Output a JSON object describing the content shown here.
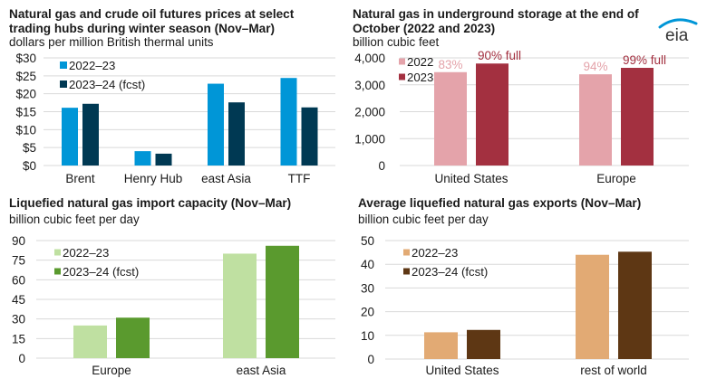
{
  "logo": {
    "text": "eia",
    "color": "#0096d7"
  },
  "chart_data": [
    {
      "type": "bar",
      "title": "Natural gas and crude oil futures prices at select trading hubs during winter season (Nov–Mar)",
      "title_lines": [
        "Natural gas and crude oil futures prices at select",
        "trading hubs during winter season (Nov–Mar)"
      ],
      "subtitle": "dollars per million British thermal units",
      "categories": [
        "Brent",
        "Henry Hub",
        "east Asia",
        "TTF"
      ],
      "series": [
        {
          "name": "2022–23",
          "color": "#0096d7",
          "values": [
            16.1,
            4.0,
            22.8,
            24.4
          ]
        },
        {
          "name": "2023–24 (fcst)",
          "color": "#003953",
          "values": [
            17.2,
            3.3,
            17.6,
            16.2
          ]
        }
      ],
      "yticks": [
        0,
        5,
        10,
        15,
        20,
        25,
        30
      ],
      "ytick_labels": [
        "$0",
        "$5",
        "$10",
        "$15",
        "$20",
        "$25",
        "$30"
      ],
      "ylim": [
        0,
        30
      ],
      "grid": true,
      "legend": "top-left"
    },
    {
      "type": "bar",
      "title": "Natural gas in underground storage at the end of October (2022 and 2023)",
      "title_lines": [
        "Natural gas in underground storage at the end of",
        "October (2022 and 2023)"
      ],
      "subtitle": "billion cubic feet",
      "categories": [
        "United States",
        "Europe"
      ],
      "series": [
        {
          "name": "2022",
          "color": "#e4a3aa",
          "values": [
            3470,
            3390
          ],
          "data_labels": [
            "83%",
            "94%"
          ]
        },
        {
          "name": "2023",
          "color": "#a33040",
          "values": [
            3790,
            3630
          ],
          "data_labels": [
            "90% full",
            "99% full"
          ]
        }
      ],
      "yticks": [
        0,
        1000,
        2000,
        3000,
        4000
      ],
      "ytick_labels": [
        "0",
        "1,000",
        "2,000",
        "3,000",
        "4,000"
      ],
      "ylim": [
        0,
        4000
      ],
      "grid": true,
      "legend": "top-left"
    },
    {
      "type": "bar",
      "title": "Liquefied natural gas import capacity (Nov–Mar)",
      "title_lines": [
        "Liquefied natural gas import capacity (Nov–Mar)"
      ],
      "subtitle": "billion cubic feet per day",
      "categories": [
        "Europe",
        "east Asia"
      ],
      "series": [
        {
          "name": "2022–23",
          "color": "#bfe0a1",
          "values": [
            25,
            80
          ]
        },
        {
          "name": "2023–24 (fcst)",
          "color": "#5a9a2e",
          "values": [
            31,
            86
          ]
        }
      ],
      "yticks": [
        0,
        15,
        30,
        45,
        60,
        75,
        90
      ],
      "ytick_labels": [
        "0",
        "15",
        "30",
        "45",
        "60",
        "75",
        "90"
      ],
      "ylim": [
        0,
        90
      ],
      "grid": true,
      "legend": "top-left"
    },
    {
      "type": "bar",
      "title": "Average liquefied natural gas exports (Nov–Mar)",
      "title_lines": [
        "Average liquefied natural gas exports (Nov–Mar)"
      ],
      "subtitle": "billion cubic feet per day",
      "categories": [
        "United States",
        "rest of world"
      ],
      "series": [
        {
          "name": "2022–23",
          "color": "#e2aa74",
          "values": [
            11.3,
            44.0
          ]
        },
        {
          "name": "2023–24 (fcst)",
          "color": "#5e3714",
          "values": [
            12.3,
            45.3
          ]
        }
      ],
      "yticks": [
        0,
        10,
        20,
        30,
        40,
        50
      ],
      "ytick_labels": [
        "0",
        "10",
        "20",
        "30",
        "40",
        "50"
      ],
      "ylim": [
        0,
        50
      ],
      "grid": true,
      "legend": "top-left"
    }
  ]
}
